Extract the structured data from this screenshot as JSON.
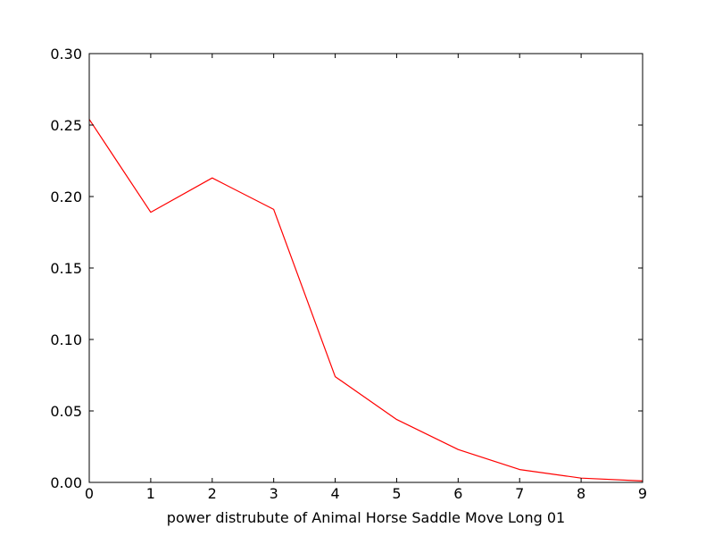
{
  "chart_data": {
    "type": "line",
    "title": "",
    "xlabel": "power distrubute of Animal Horse Saddle Move Long 01",
    "ylabel": "",
    "xlim": [
      0,
      9
    ],
    "ylim": [
      0,
      0.3
    ],
    "xticks": [
      "0",
      "1",
      "2",
      "3",
      "4",
      "5",
      "6",
      "7",
      "8",
      "9"
    ],
    "yticks": [
      "0.00",
      "0.05",
      "0.10",
      "0.15",
      "0.20",
      "0.25",
      "0.30"
    ],
    "grid": false,
    "legend": "none",
    "series": [
      {
        "color": "#ff0000",
        "x": [
          0,
          1,
          2,
          3,
          4,
          5,
          6,
          7,
          8,
          9
        ],
        "values": [
          0.254,
          0.189,
          0.213,
          0.191,
          0.074,
          0.044,
          0.023,
          0.009,
          0.003,
          0.001
        ]
      }
    ]
  }
}
